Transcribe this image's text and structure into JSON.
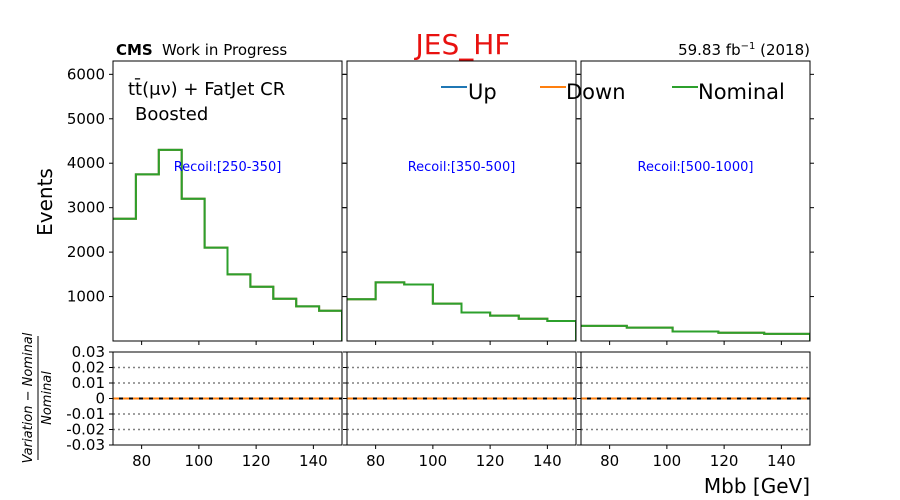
{
  "figure": {
    "title": "JES_HF",
    "cms_label": "CMS",
    "cms_sublabel": "Work in Progress",
    "lumi_text": "59.83 fb",
    "lumi_exp": "−1",
    "lumi_suffix": " (2018)",
    "region_line1": "tt̄(μν) + FatJet CR",
    "region_line2": "Boosted",
    "ylabel": "Events",
    "ratio_ylabel": "(Variation − Nominal) / Nominal",
    "xlabel": "Mbb [GeV]"
  },
  "colors": {
    "title": "#e8110f",
    "up": "#1f77b4",
    "down": "#ff7f0e",
    "nominal": "#2ca02c",
    "panel_label": "#0000ff",
    "ratio_line": "#000000",
    "grid": "#808080"
  },
  "legend": {
    "placement": "top-right",
    "items": [
      {
        "label": "Up",
        "color": "#1f77b4"
      },
      {
        "label": "Down",
        "color": "#ff7f0e"
      },
      {
        "label": "Nominal",
        "color": "#2ca02c"
      }
    ]
  },
  "chart_data": {
    "type": "line",
    "step": true,
    "x_range": [
      70,
      150
    ],
    "y_range": [
      0,
      6300
    ],
    "y_ticks": [
      1000,
      2000,
      3000,
      4000,
      5000,
      6000
    ],
    "x_ticks": [
      80,
      100,
      120,
      140
    ],
    "ratio_range": [
      -0.03,
      0.03
    ],
    "ratio_ticks": [
      -0.03,
      -0.02,
      -0.01,
      0,
      0.01,
      0.02,
      0.03
    ],
    "ratio_tick_labels": [
      "-0.03",
      "-0.02",
      "-0.01",
      "0",
      "0.01",
      "0.02",
      "0.03"
    ],
    "ratio_grid": [
      -0.02,
      -0.01,
      0.01,
      0.02
    ],
    "ratio_values": 0,
    "panels": [
      {
        "label": "Recoil:[250-350]",
        "bin_edges": [
          70,
          78,
          86,
          94,
          102,
          110,
          118,
          126,
          134,
          142,
          150
        ],
        "series": [
          {
            "name": "Up",
            "values": [
              2750,
              3750,
              4300,
              3200,
              2100,
              1500,
              1220,
              950,
              780,
              680
            ]
          },
          {
            "name": "Down",
            "values": [
              2750,
              3750,
              4300,
              3200,
              2100,
              1500,
              1220,
              950,
              780,
              680
            ]
          },
          {
            "name": "Nominal",
            "values": [
              2750,
              3750,
              4300,
              3200,
              2100,
              1500,
              1220,
              950,
              780,
              680
            ]
          }
        ]
      },
      {
        "label": "Recoil:[350-500]",
        "bin_edges": [
          70,
          80,
          90,
          100,
          110,
          120,
          130,
          140,
          150
        ],
        "series": [
          {
            "name": "Up",
            "values": [
              940,
              1320,
              1270,
              840,
              640,
              570,
              500,
              450
            ]
          },
          {
            "name": "Down",
            "values": [
              940,
              1320,
              1270,
              840,
              640,
              570,
              500,
              450
            ]
          },
          {
            "name": "Nominal",
            "values": [
              940,
              1320,
              1270,
              840,
              640,
              570,
              500,
              450
            ]
          }
        ]
      },
      {
        "label": "Recoil:[500-1000]",
        "bin_edges": [
          70,
          86,
          102,
          118,
          134,
          150
        ],
        "series": [
          {
            "name": "Up",
            "values": [
              340,
              300,
              215,
              185,
              160
            ]
          },
          {
            "name": "Down",
            "values": [
              340,
              300,
              215,
              185,
              160
            ]
          },
          {
            "name": "Nominal",
            "values": [
              340,
              300,
              215,
              185,
              160
            ]
          }
        ]
      }
    ]
  }
}
